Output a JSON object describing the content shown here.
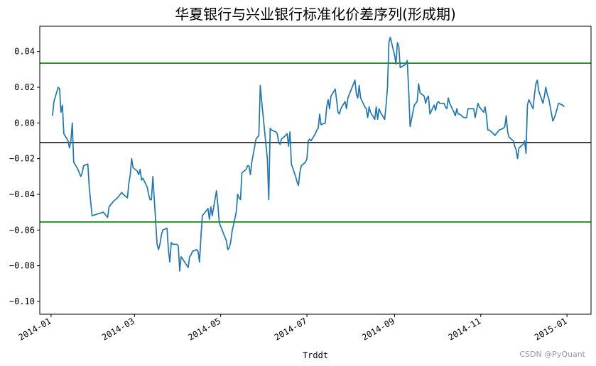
{
  "chart_data": {
    "type": "line",
    "title": "华夏银行与兴业银行标准化价差序列(形成期)",
    "xlabel": "Trddt",
    "ylabel": "",
    "grid": false,
    "xlim": [
      "2013-12-24",
      "2015-01-18"
    ],
    "ylim": [
      -0.1072,
      0.0542
    ],
    "x_ticks": [
      "2014-01",
      "2014-03",
      "2014-05",
      "2014-07",
      "2014-09",
      "2014-11",
      "2015-01"
    ],
    "y_ticks": [
      0.04,
      0.02,
      0.0,
      -0.02,
      -0.04,
      -0.06,
      -0.08,
      -0.1
    ],
    "y_tick_labels": [
      "0.04",
      "0.02",
      "0.00",
      "−0.02",
      "−0.04",
      "−0.06",
      "−0.08",
      "−0.10"
    ],
    "hlines": [
      {
        "y": 0.0335,
        "color": "#008000"
      },
      {
        "y": -0.011,
        "color": "#000000"
      },
      {
        "y": -0.0555,
        "color": "#008000"
      }
    ],
    "series": [
      {
        "color": "#1f77b4",
        "points": [
          [
            "2014-01-02",
            0.004
          ],
          [
            "2014-01-03",
            0.012
          ],
          [
            "2014-01-06",
            0.02
          ],
          [
            "2014-01-07",
            0.019
          ],
          [
            "2014-01-08",
            0.006
          ],
          [
            "2014-01-09",
            0.01
          ],
          [
            "2014-01-10",
            -0.006
          ],
          [
            "2014-01-13",
            -0.01
          ],
          [
            "2014-01-14",
            -0.014
          ],
          [
            "2014-01-15",
            -0.01
          ],
          [
            "2014-01-16",
            0.0
          ],
          [
            "2014-01-17",
            -0.022
          ],
          [
            "2014-01-20",
            -0.026
          ],
          [
            "2014-01-21",
            -0.028
          ],
          [
            "2014-01-22",
            -0.03
          ],
          [
            "2014-01-23",
            -0.028
          ],
          [
            "2014-01-24",
            -0.024
          ],
          [
            "2014-01-27",
            -0.023
          ],
          [
            "2014-01-28",
            -0.036
          ],
          [
            "2014-01-29",
            -0.044
          ],
          [
            "2014-01-30",
            -0.052
          ],
          [
            "2014-02-07",
            -0.05
          ],
          [
            "2014-02-10",
            -0.053
          ],
          [
            "2014-02-11",
            -0.047
          ],
          [
            "2014-02-12",
            -0.046
          ],
          [
            "2014-02-13",
            -0.045
          ],
          [
            "2014-02-14",
            -0.044
          ],
          [
            "2014-02-17",
            -0.042
          ],
          [
            "2014-02-18",
            -0.041
          ],
          [
            "2014-02-19",
            -0.04
          ],
          [
            "2014-02-20",
            -0.039
          ],
          [
            "2014-02-21",
            -0.04
          ],
          [
            "2014-02-24",
            -0.042
          ],
          [
            "2014-02-25",
            -0.034
          ],
          [
            "2014-02-26",
            -0.029
          ],
          [
            "2014-02-27",
            -0.02
          ],
          [
            "2014-02-28",
            -0.025
          ],
          [
            "2014-03-03",
            -0.027
          ],
          [
            "2014-03-04",
            -0.029
          ],
          [
            "2014-03-05",
            -0.026
          ],
          [
            "2014-03-06",
            -0.032
          ],
          [
            "2014-03-07",
            -0.031
          ],
          [
            "2014-03-10",
            -0.036
          ],
          [
            "2014-03-11",
            -0.04
          ],
          [
            "2014-03-12",
            -0.043
          ],
          [
            "2014-03-13",
            -0.043
          ],
          [
            "2014-03-14",
            -0.03
          ],
          [
            "2014-03-17",
            -0.068
          ],
          [
            "2014-03-18",
            -0.071
          ],
          [
            "2014-03-19",
            -0.068
          ],
          [
            "2014-03-20",
            -0.063
          ],
          [
            "2014-03-21",
            -0.06
          ],
          [
            "2014-03-24",
            -0.059
          ],
          [
            "2014-03-25",
            -0.071
          ],
          [
            "2014-03-26",
            -0.078
          ],
          [
            "2014-03-27",
            -0.067
          ],
          [
            "2014-03-28",
            -0.068
          ],
          [
            "2014-03-31",
            -0.068
          ],
          [
            "2014-04-01",
            -0.069
          ],
          [
            "2014-04-02",
            -0.083
          ],
          [
            "2014-04-03",
            -0.075
          ],
          [
            "2014-04-08",
            -0.081
          ],
          [
            "2014-04-09",
            -0.075
          ],
          [
            "2014-04-10",
            -0.074
          ],
          [
            "2014-04-11",
            -0.072
          ],
          [
            "2014-04-14",
            -0.071
          ],
          [
            "2014-04-15",
            -0.072
          ],
          [
            "2014-04-16",
            -0.078
          ],
          [
            "2014-04-17",
            -0.064
          ],
          [
            "2014-04-18",
            -0.052
          ],
          [
            "2014-04-21",
            -0.049
          ],
          [
            "2014-04-22",
            -0.048
          ],
          [
            "2014-04-23",
            -0.054
          ],
          [
            "2014-04-24",
            -0.047
          ],
          [
            "2014-04-25",
            -0.052
          ],
          [
            "2014-04-28",
            -0.038
          ],
          [
            "2014-04-29",
            -0.046
          ],
          [
            "2014-04-30",
            -0.056
          ],
          [
            "2014-05-05",
            -0.066
          ],
          [
            "2014-05-06",
            -0.071
          ],
          [
            "2014-05-07",
            -0.07
          ],
          [
            "2014-05-08",
            -0.067
          ],
          [
            "2014-05-09",
            -0.061
          ],
          [
            "2014-05-12",
            -0.05
          ],
          [
            "2014-05-13",
            -0.04
          ],
          [
            "2014-05-14",
            -0.042
          ],
          [
            "2014-05-15",
            -0.043
          ],
          [
            "2014-05-16",
            -0.028
          ],
          [
            "2014-05-19",
            -0.026
          ],
          [
            "2014-05-20",
            -0.024
          ],
          [
            "2014-05-21",
            -0.024
          ],
          [
            "2014-05-22",
            -0.029
          ],
          [
            "2014-05-23",
            -0.022
          ],
          [
            "2014-05-26",
            -0.009
          ],
          [
            "2014-05-27",
            -0.008
          ],
          [
            "2014-05-28",
            -0.007
          ],
          [
            "2014-05-29",
            0.021
          ],
          [
            "2014-05-30",
            0.012
          ],
          [
            "2014-06-03",
            -0.02
          ],
          [
            "2014-06-04",
            -0.043
          ],
          [
            "2014-06-05",
            -0.003
          ],
          [
            "2014-06-06",
            -0.004
          ],
          [
            "2014-06-09",
            -0.005
          ],
          [
            "2014-06-10",
            -0.006
          ],
          [
            "2014-06-11",
            -0.011
          ],
          [
            "2014-06-12",
            -0.012
          ],
          [
            "2014-06-13",
            -0.009
          ],
          [
            "2014-06-16",
            -0.007
          ],
          [
            "2014-06-17",
            -0.006
          ],
          [
            "2014-06-18",
            -0.013
          ],
          [
            "2014-06-19",
            -0.005
          ],
          [
            "2014-06-20",
            -0.023
          ],
          [
            "2014-06-23",
            -0.03
          ],
          [
            "2014-06-24",
            -0.033
          ],
          [
            "2014-06-25",
            -0.035
          ],
          [
            "2014-06-26",
            -0.028
          ],
          [
            "2014-06-27",
            -0.024
          ],
          [
            "2014-06-30",
            -0.022
          ],
          [
            "2014-07-01",
            -0.02
          ],
          [
            "2014-07-02",
            -0.01
          ],
          [
            "2014-07-03",
            -0.009
          ],
          [
            "2014-07-04",
            -0.01
          ],
          [
            "2014-07-07",
            -0.006
          ],
          [
            "2014-07-08",
            -0.004
          ],
          [
            "2014-07-09",
            -0.003
          ],
          [
            "2014-07-10",
            0.005
          ],
          [
            "2014-07-11",
            -0.001
          ],
          [
            "2014-07-14",
            0.0
          ],
          [
            "2014-07-15",
            0.009
          ],
          [
            "2014-07-16",
            0.013
          ],
          [
            "2014-07-17",
            0.008
          ],
          [
            "2014-07-18",
            0.015
          ],
          [
            "2014-07-21",
            0.019
          ],
          [
            "2014-07-22",
            0.013
          ],
          [
            "2014-07-23",
            0.006
          ],
          [
            "2014-07-24",
            0.005
          ],
          [
            "2014-07-25",
            0.008
          ],
          [
            "2014-07-28",
            0.012
          ],
          [
            "2014-07-29",
            0.008
          ],
          [
            "2014-07-30",
            0.014
          ],
          [
            "2014-07-31",
            0.016
          ],
          [
            "2014-08-01",
            0.018
          ],
          [
            "2014-08-04",
            0.024
          ],
          [
            "2014-08-05",
            0.016
          ],
          [
            "2014-08-06",
            0.014
          ],
          [
            "2014-08-07",
            0.021
          ],
          [
            "2014-08-08",
            0.014
          ],
          [
            "2014-08-11",
            0.009
          ],
          [
            "2014-08-12",
            0.008
          ],
          [
            "2014-08-13",
            0.003
          ],
          [
            "2014-08-14",
            0.009
          ],
          [
            "2014-08-15",
            0.006
          ],
          [
            "2014-08-18",
            0.002
          ],
          [
            "2014-08-19",
            0.009
          ],
          [
            "2014-08-20",
            0.002
          ],
          [
            "2014-08-21",
            0.008
          ],
          [
            "2014-08-22",
            0.006
          ],
          [
            "2014-08-25",
            0.002
          ],
          [
            "2014-08-26",
            0.01
          ],
          [
            "2014-08-27",
            0.02
          ],
          [
            "2014-08-28",
            0.045
          ],
          [
            "2014-08-29",
            0.048
          ],
          [
            "2014-09-01",
            0.038
          ],
          [
            "2014-09-02",
            0.033
          ],
          [
            "2014-09-03",
            0.045
          ],
          [
            "2014-09-04",
            0.043
          ],
          [
            "2014-09-05",
            0.031
          ],
          [
            "2014-09-09",
            0.033
          ],
          [
            "2014-09-10",
            0.035
          ],
          [
            "2014-09-11",
            0.018
          ],
          [
            "2014-09-12",
            -0.002
          ],
          [
            "2014-09-15",
            0.01
          ],
          [
            "2014-09-16",
            0.011
          ],
          [
            "2014-09-17",
            0.012
          ],
          [
            "2014-09-18",
            0.022
          ],
          [
            "2014-09-19",
            0.017
          ],
          [
            "2014-09-22",
            0.015
          ],
          [
            "2014-09-23",
            0.011
          ],
          [
            "2014-09-24",
            0.014
          ],
          [
            "2014-09-25",
            0.015
          ],
          [
            "2014-09-26",
            0.005
          ],
          [
            "2014-09-29",
            0.01
          ],
          [
            "2014-09-30",
            0.007
          ],
          [
            "2014-10-01",
            0.011
          ],
          [
            "2014-10-02",
            0.012
          ],
          [
            "2014-10-03",
            0.011
          ],
          [
            "2014-10-06",
            0.011
          ],
          [
            "2014-10-07",
            0.009
          ],
          [
            "2014-10-08",
            0.008
          ],
          [
            "2014-10-09",
            0.014
          ],
          [
            "2014-10-10",
            0.011
          ],
          [
            "2014-10-13",
            0.006
          ],
          [
            "2014-10-14",
            0.004
          ],
          [
            "2014-10-15",
            0.008
          ],
          [
            "2014-10-16",
            0.005
          ],
          [
            "2014-10-17",
            0.005
          ],
          [
            "2014-10-20",
            0.003
          ],
          [
            "2014-10-21",
            0.003
          ],
          [
            "2014-10-22",
            0.003
          ],
          [
            "2014-10-23",
            0.008
          ],
          [
            "2014-10-24",
            0.008
          ],
          [
            "2014-10-27",
            0.008
          ],
          [
            "2014-10-28",
            0.003
          ],
          [
            "2014-10-29",
            0.007
          ],
          [
            "2014-10-30",
            0.011
          ],
          [
            "2014-10-31",
            0.009
          ],
          [
            "2014-11-03",
            0.006
          ],
          [
            "2014-11-04",
            0.009
          ],
          [
            "2014-11-05",
            0.004
          ],
          [
            "2014-11-06",
            -0.004
          ],
          [
            "2014-11-07",
            -0.004
          ],
          [
            "2014-11-10",
            -0.006
          ],
          [
            "2014-11-11",
            -0.007
          ],
          [
            "2014-11-12",
            -0.006
          ],
          [
            "2014-11-13",
            -0.005
          ],
          [
            "2014-11-14",
            -0.004
          ],
          [
            "2014-11-17",
            -0.003
          ],
          [
            "2014-11-18",
            -0.002
          ],
          [
            "2014-11-19",
            0.004
          ],
          [
            "2014-11-20",
            -0.005
          ],
          [
            "2014-11-21",
            -0.008
          ],
          [
            "2014-11-24",
            -0.01
          ],
          [
            "2014-11-25",
            -0.013
          ],
          [
            "2014-11-26",
            -0.015
          ],
          [
            "2014-11-27",
            -0.02
          ],
          [
            "2014-11-28",
            -0.014
          ],
          [
            "2014-12-01",
            -0.012
          ],
          [
            "2014-12-02",
            -0.01
          ],
          [
            "2014-12-03",
            -0.017
          ],
          [
            "2014-12-04",
            0.01
          ],
          [
            "2014-12-05",
            0.013
          ],
          [
            "2014-12-08",
            0.008
          ],
          [
            "2014-12-09",
            0.016
          ],
          [
            "2014-12-10",
            0.022
          ],
          [
            "2014-12-11",
            0.024
          ],
          [
            "2014-12-12",
            0.018
          ],
          [
            "2014-12-15",
            0.011
          ],
          [
            "2014-12-16",
            0.015
          ],
          [
            "2014-12-17",
            0.02
          ],
          [
            "2014-12-18",
            0.016
          ],
          [
            "2014-12-19",
            0.014
          ],
          [
            "2014-12-22",
            0.001
          ],
          [
            "2014-12-23",
            0.003
          ],
          [
            "2014-12-24",
            0.005
          ],
          [
            "2014-12-25",
            0.008
          ],
          [
            "2014-12-26",
            0.011
          ],
          [
            "2014-12-29",
            0.01
          ],
          [
            "2014-12-30",
            0.009
          ]
        ]
      }
    ],
    "watermark": "CSDN @PyQuant"
  }
}
